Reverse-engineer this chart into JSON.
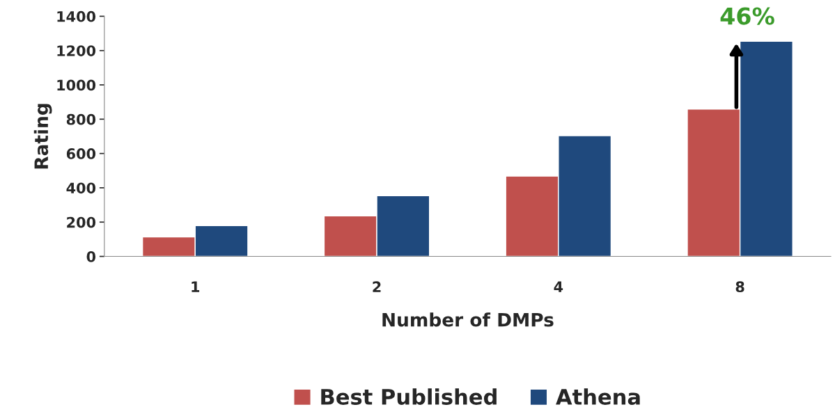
{
  "chart_data": {
    "type": "bar",
    "xlabel": "Number of DMPs",
    "ylabel": "Rating",
    "categories": [
      "1",
      "2",
      "4",
      "8"
    ],
    "series": [
      {
        "name": "Best Published",
        "color": "#c0504d",
        "values": [
          114,
          236,
          468,
          859
        ]
      },
      {
        "name": "Athena",
        "color": "#1f497d",
        "values": [
          179,
          354,
          704,
          1254
        ]
      }
    ],
    "ylim": [
      0,
      1400
    ],
    "yticks": [
      0,
      200,
      400,
      600,
      800,
      1000,
      1200,
      1400
    ],
    "grid": false,
    "legend": "bottom",
    "annotations": [
      {
        "text": "46%",
        "x": "8",
        "y": 1254
      }
    ]
  }
}
